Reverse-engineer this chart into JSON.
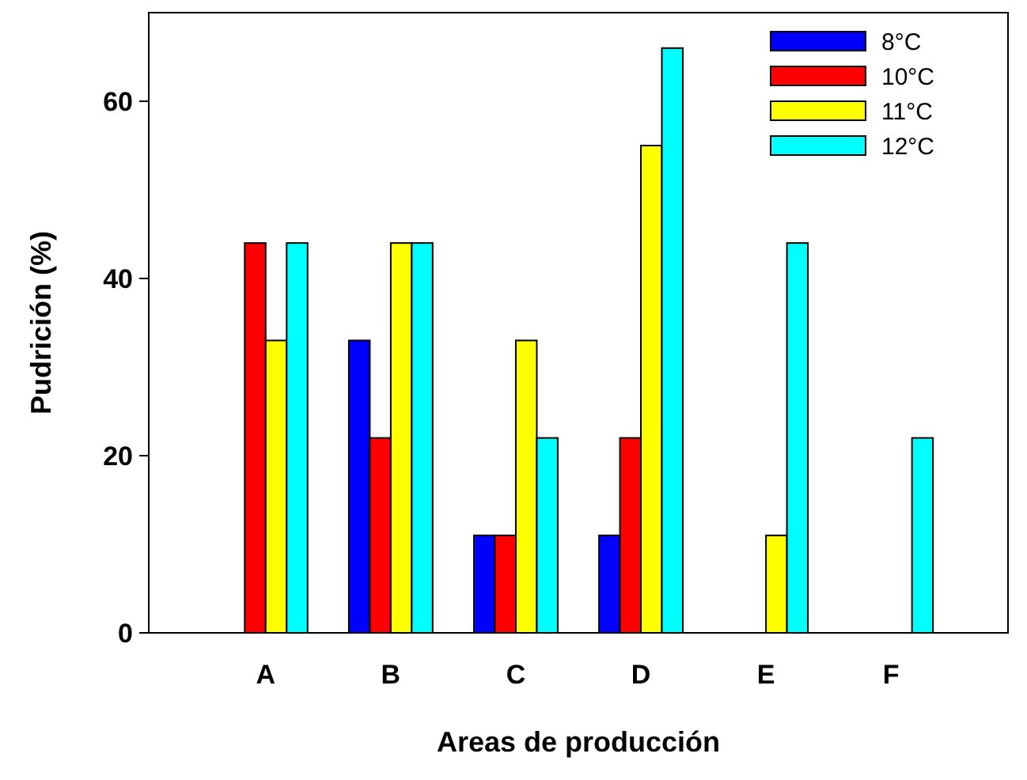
{
  "chart_data": {
    "type": "bar",
    "xlabel": "Areas de producción",
    "ylabel": "Pudrición (%)",
    "categories": [
      "A",
      "B",
      "C",
      "D",
      "E",
      "F"
    ],
    "series": [
      {
        "name": "8°C",
        "color": "#0000ff",
        "values": [
          0,
          33,
          11,
          11,
          0,
          0
        ]
      },
      {
        "name": "10°C",
        "color": "#ff0000",
        "values": [
          44,
          22,
          11,
          22,
          0,
          0
        ]
      },
      {
        "name": "11°C",
        "color": "#ffff00",
        "values": [
          33,
          44,
          33,
          55,
          11,
          0
        ]
      },
      {
        "name": "12°C",
        "color": "#00ffff",
        "values": [
          44,
          44,
          22,
          66,
          44,
          22
        ]
      }
    ],
    "ylim": [
      0,
      70
    ],
    "yticks": [
      0,
      20,
      40,
      60
    ],
    "grid": false,
    "legend": "top right"
  }
}
